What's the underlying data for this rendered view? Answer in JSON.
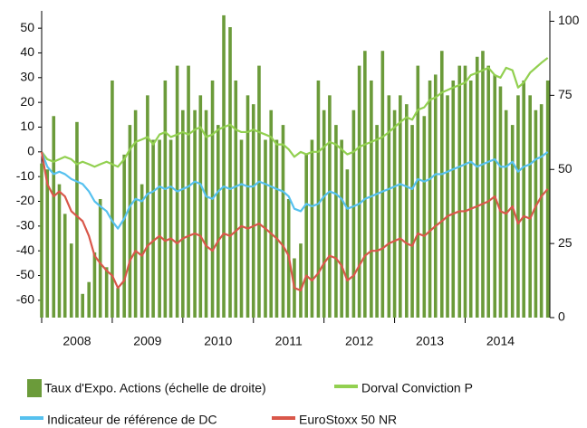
{
  "chart_data": {
    "type": "combo",
    "x": [
      2008.0,
      2008.08,
      2008.17,
      2008.25,
      2008.33,
      2008.42,
      2008.5,
      2008.58,
      2008.67,
      2008.75,
      2008.83,
      2008.92,
      2009.0,
      2009.08,
      2009.17,
      2009.25,
      2009.33,
      2009.42,
      2009.5,
      2009.58,
      2009.67,
      2009.75,
      2009.83,
      2009.92,
      2010.0,
      2010.08,
      2010.17,
      2010.25,
      2010.33,
      2010.42,
      2010.5,
      2010.58,
      2010.67,
      2010.75,
      2010.83,
      2010.92,
      2011.0,
      2011.08,
      2011.17,
      2011.25,
      2011.33,
      2011.42,
      2011.5,
      2011.58,
      2011.67,
      2011.75,
      2011.83,
      2011.92,
      2012.0,
      2012.08,
      2012.17,
      2012.25,
      2012.33,
      2012.42,
      2012.5,
      2012.58,
      2012.67,
      2012.75,
      2012.83,
      2012.92,
      2013.0,
      2013.08,
      2013.17,
      2013.25,
      2013.33,
      2013.42,
      2013.5,
      2013.58,
      2013.67,
      2013.75,
      2013.83,
      2013.92,
      2014.0,
      2014.08,
      2014.17,
      2014.25,
      2014.33,
      2014.42,
      2014.5,
      2014.58,
      2014.67,
      2014.75,
      2014.83,
      2014.92,
      2015.0,
      2015.08,
      2015.17
    ],
    "xlim": [
      2008,
      2015.2
    ],
    "xticks": [
      2008,
      2009,
      2010,
      2011,
      2012,
      2013,
      2014
    ],
    "ylim": [
      -67,
      57
    ],
    "yticks": [
      -60,
      -50,
      -40,
      -30,
      -20,
      -10,
      0,
      10,
      20,
      30,
      40,
      50
    ],
    "y2lim": [
      0,
      103.5
    ],
    "y2ticks": [
      0,
      25,
      50,
      75,
      100
    ],
    "series": [
      {
        "name": "Taux d'Expo. Actions (échelle de droite)",
        "type": "bar",
        "axis": "y2",
        "color": "#6b9b3a",
        "values": [
          52,
          50,
          68,
          45,
          35,
          25,
          66,
          8,
          12,
          22,
          40,
          17,
          80,
          10,
          55,
          65,
          70,
          45,
          75,
          60,
          60,
          80,
          60,
          85,
          70,
          85,
          70,
          75,
          70,
          80,
          65,
          102,
          98,
          80,
          60,
          75,
          72,
          85,
          60,
          70,
          60,
          65,
          40,
          20,
          25,
          55,
          60,
          80,
          70,
          75,
          65,
          60,
          50,
          70,
          85,
          90,
          80,
          65,
          90,
          75,
          70,
          75,
          72,
          65,
          85,
          68,
          80,
          82,
          90,
          75,
          80,
          85,
          85,
          80,
          88,
          90,
          85,
          82,
          78,
          70,
          65,
          75,
          80,
          75,
          70,
          72,
          80
        ]
      },
      {
        "name": "Dorval Conviction P",
        "type": "line",
        "color": "#92d050",
        "values": [
          0,
          -3,
          -4,
          -3,
          -2,
          -3,
          -5,
          -4,
          -5,
          -6,
          -5,
          -4,
          -5,
          -6,
          -3,
          1,
          4,
          5,
          6,
          3,
          7,
          8,
          6,
          7,
          8,
          7,
          9,
          10,
          6,
          7,
          9,
          10,
          11,
          9,
          8,
          8,
          9,
          8,
          7,
          6,
          3,
          3,
          1,
          -2,
          0,
          -1,
          0,
          0,
          2,
          4,
          3,
          1,
          -1,
          0,
          2,
          3,
          4,
          5,
          6,
          8,
          10,
          12,
          14,
          13,
          17,
          18,
          21,
          22,
          24,
          25,
          26,
          27,
          28,
          31,
          32,
          33,
          34,
          31,
          30,
          34,
          33,
          26,
          28,
          32,
          34,
          36,
          38
        ]
      },
      {
        "name": "Indicateur de référence de DC",
        "type": "line",
        "color": "#56c1ef",
        "values": [
          0,
          -6,
          -9,
          -8,
          -9,
          -11,
          -12,
          -13,
          -16,
          -20,
          -22,
          -24,
          -28,
          -31,
          -27,
          -22,
          -19,
          -20,
          -17,
          -16,
          -14,
          -15,
          -14,
          -16,
          -15,
          -14,
          -12,
          -13,
          -18,
          -19,
          -16,
          -14,
          -15,
          -14,
          -13,
          -14,
          -14,
          -12,
          -13,
          -14,
          -15,
          -16,
          -18,
          -23,
          -24,
          -21,
          -22,
          -21,
          -18,
          -16,
          -17,
          -19,
          -23,
          -22,
          -21,
          -19,
          -18,
          -17,
          -16,
          -15,
          -14,
          -13,
          -14,
          -15,
          -11,
          -12,
          -11,
          -9,
          -9,
          -8,
          -7,
          -6,
          -5,
          -4,
          -6,
          -5,
          -4,
          -3,
          -6,
          -6,
          -4,
          -8,
          -6,
          -5,
          -3,
          -2,
          0
        ]
      },
      {
        "name": "EuroStoxx 50 NR",
        "type": "line",
        "color": "#d9574a",
        "values": [
          0,
          -13,
          -18,
          -16,
          -18,
          -24,
          -26,
          -28,
          -34,
          -42,
          -45,
          -48,
          -50,
          -55,
          -52,
          -44,
          -40,
          -42,
          -38,
          -36,
          -34,
          -36,
          -35,
          -37,
          -35,
          -34,
          -33,
          -34,
          -38,
          -40,
          -36,
          -33,
          -34,
          -32,
          -30,
          -31,
          -30,
          -29,
          -31,
          -33,
          -35,
          -38,
          -42,
          -55,
          -56,
          -50,
          -52,
          -49,
          -45,
          -42,
          -43,
          -46,
          -52,
          -50,
          -46,
          -42,
          -40,
          -40,
          -39,
          -37,
          -36,
          -35,
          -37,
          -38,
          -33,
          -34,
          -32,
          -30,
          -28,
          -26,
          -25,
          -24,
          -24,
          -23,
          -22,
          -21,
          -20,
          -18,
          -24,
          -25,
          -22,
          -29,
          -26,
          -27,
          -22,
          -18,
          -15
        ]
      }
    ]
  }
}
